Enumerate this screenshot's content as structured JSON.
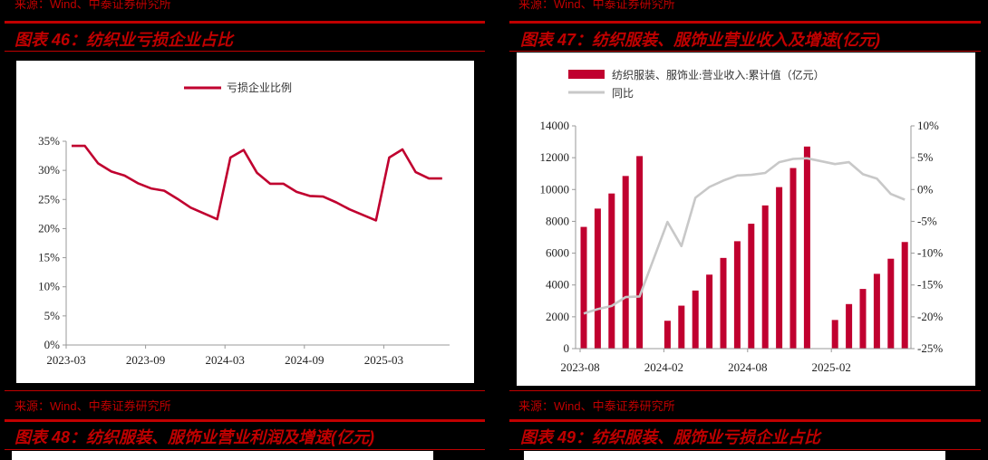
{
  "panels": [
    {
      "source_top": "来源：Wind、中泰证券研究所",
      "figure_title": "图表 46：纺织业亏损企业占比",
      "source_bottom": "来源：Wind、中泰证券研究所",
      "next_title": "图表 48：纺织服装、服饰业营业利润及增速(亿元)"
    },
    {
      "source_top": "来源：Wind、中泰证券研究所",
      "figure_title": "图表 47：纺织服装、服饰业营业收入及增速(亿元)",
      "source_bottom": "来源：Wind、中泰证券研究所",
      "next_title": "图表 49：纺织服装、服饰业亏损企业占比"
    }
  ],
  "colors": {
    "accent": "#c00000",
    "series_red": "#c0002f",
    "series_gray": "#c8c8c8",
    "axis": "#999999"
  },
  "chart_data": [
    {
      "type": "line",
      "title": "图表 46：纺织业亏损企业占比",
      "legend": [
        "亏损企业比例"
      ],
      "xlabel": "",
      "ylabel": "",
      "x_tick_labels": [
        "2023-03",
        "2023-09",
        "2024-03",
        "2024-09",
        "2025-03"
      ],
      "y_tick_labels": [
        "0%",
        "5%",
        "10%",
        "15%",
        "20%",
        "25%",
        "30%",
        "35%"
      ],
      "ylim": [
        0,
        35
      ],
      "x": [
        "2023-03",
        "2023-04",
        "2023-05",
        "2023-06",
        "2023-07",
        "2023-08",
        "2023-09",
        "2023-10",
        "2023-11",
        "2023-12",
        "2024-02",
        "2024-03",
        "2024-04",
        "2024-05",
        "2024-06",
        "2024-07",
        "2024-08",
        "2024-09",
        "2024-10",
        "2024-11",
        "2024-12",
        "2025-02",
        "2025-03",
        "2025-04",
        "2025-05",
        "2025-06",
        "2025-07"
      ],
      "series": [
        {
          "name": "亏损企业比例",
          "values": [
            34.2,
            34.2,
            31.2,
            29.8,
            29.1,
            27.8,
            26.9,
            26.5,
            25.1,
            23.6,
            21.6,
            32.2,
            33.5,
            29.6,
            27.7,
            27.7,
            26.3,
            25.6,
            25.5,
            24.5,
            23.3,
            21.4,
            32.2,
            33.6,
            29.7,
            28.6,
            28.6
          ]
        }
      ]
    },
    {
      "type": "bar",
      "title": "图表 47：纺织服装、服饰业营业收入及增速(亿元)",
      "legend": [
        "纺织服装、服饰业:营业收入:累计值（亿元）",
        "同比"
      ],
      "x_tick_labels": [
        "2023-08",
        "2024-02",
        "2024-08",
        "2025-02"
      ],
      "y_left_tick_labels": [
        "0",
        "2000",
        "4000",
        "6000",
        "8000",
        "10000",
        "12000",
        "14000"
      ],
      "y_right_tick_labels": [
        "-25%",
        "-20%",
        "-15%",
        "-10%",
        "-5%",
        "0%",
        "5%",
        "10%"
      ],
      "ylim_left": [
        0,
        14000
      ],
      "ylim_right": [
        -25,
        10
      ],
      "categories": [
        "2023-08",
        "2023-09",
        "2023-10",
        "2023-11",
        "2023-12",
        "2024-02",
        "2024-03",
        "2024-04",
        "2024-05",
        "2024-06",
        "2024-07",
        "2024-08",
        "2024-09",
        "2024-10",
        "2024-11",
        "2024-12",
        "2025-02",
        "2025-03",
        "2025-04",
        "2025-05",
        "2025-06",
        "2025-07"
      ],
      "series": [
        {
          "name": "纺织服装、服饰业:营业收入:累计值（亿元）",
          "type": "bar",
          "axis": "left",
          "values": [
            7650,
            8800,
            9750,
            10850,
            12100,
            1750,
            2700,
            3650,
            4650,
            5700,
            6750,
            7850,
            9000,
            10150,
            11350,
            12700,
            1800,
            2800,
            3750,
            4700,
            5650,
            6700
          ]
        },
        {
          "name": "同比",
          "type": "line",
          "axis": "right",
          "values": [
            -19.5,
            -18.8,
            -18.3,
            -16.9,
            -16.8,
            -5.1,
            -8.9,
            -1.3,
            0.4,
            1.4,
            2.2,
            2.3,
            2.6,
            4.3,
            4.8,
            4.9,
            4.0,
            4.3,
            2.4,
            1.7,
            -0.7,
            -1.6
          ]
        }
      ]
    }
  ]
}
